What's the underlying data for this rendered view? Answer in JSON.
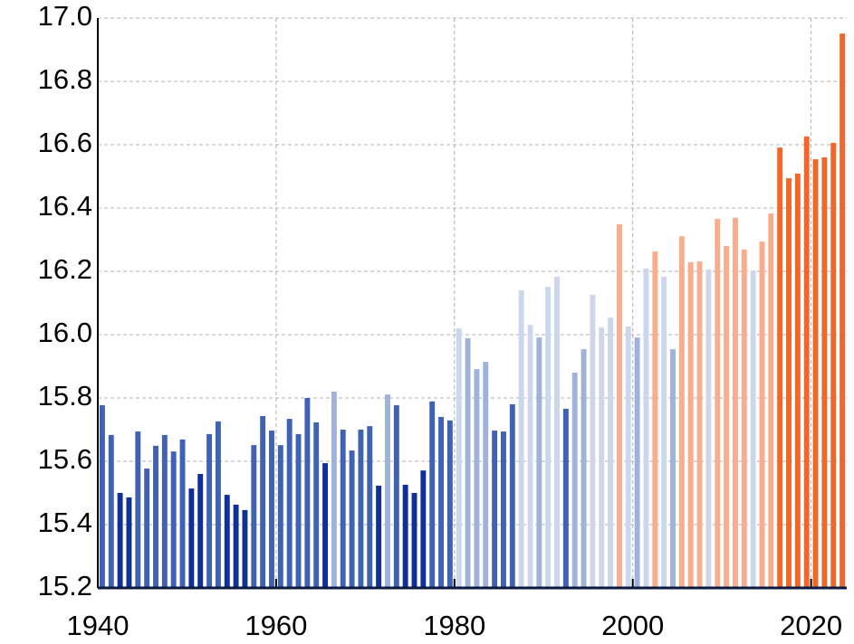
{
  "chart_data": {
    "type": "bar",
    "x": [
      1940,
      1941,
      1942,
      1943,
      1944,
      1945,
      1946,
      1947,
      1948,
      1949,
      1950,
      1951,
      1952,
      1953,
      1954,
      1955,
      1956,
      1957,
      1958,
      1959,
      1960,
      1961,
      1962,
      1963,
      1964,
      1965,
      1966,
      1967,
      1968,
      1969,
      1970,
      1971,
      1972,
      1973,
      1974,
      1975,
      1976,
      1977,
      1978,
      1979,
      1980,
      1981,
      1982,
      1983,
      1984,
      1985,
      1986,
      1987,
      1988,
      1989,
      1990,
      1991,
      1992,
      1993,
      1994,
      1995,
      1996,
      1997,
      1998,
      1999,
      2000,
      2001,
      2002,
      2003,
      2004,
      2005,
      2006,
      2007,
      2008,
      2009,
      2010,
      2011,
      2012,
      2013,
      2014,
      2015,
      2016,
      2017,
      2018,
      2019,
      2020,
      2021,
      2022,
      2023
    ],
    "values": [
      15.777,
      15.683,
      15.5,
      15.486,
      15.694,
      15.577,
      15.649,
      15.683,
      15.631,
      15.669,
      15.514,
      15.56,
      15.686,
      15.726,
      15.494,
      15.463,
      15.446,
      15.651,
      15.743,
      15.697,
      15.651,
      15.734,
      15.686,
      15.8,
      15.723,
      15.594,
      15.82,
      15.7,
      15.634,
      15.7,
      15.711,
      15.523,
      15.811,
      15.777,
      15.526,
      15.5,
      15.571,
      15.789,
      15.74,
      15.729,
      16.02,
      15.989,
      15.891,
      15.914,
      15.697,
      15.694,
      15.78,
      16.14,
      16.031,
      15.991,
      16.151,
      16.183,
      15.766,
      15.88,
      15.954,
      16.126,
      16.023,
      16.054,
      16.349,
      16.026,
      15.991,
      16.209,
      16.263,
      16.183,
      15.954,
      16.311,
      16.229,
      16.231,
      16.206,
      16.366,
      16.28,
      16.369,
      16.269,
      16.203,
      16.294,
      16.383,
      16.591,
      16.494,
      16.509,
      16.626,
      16.554,
      16.56,
      16.606,
      16.951
    ],
    "colors": [
      "#3f62b5",
      "#3f62b5",
      "#0f2f99",
      "#0f2f99",
      "#3f62b5",
      "#3f62b5",
      "#3f62b5",
      "#3f62b5",
      "#3f62b5",
      "#3f62b5",
      "#0f2f99",
      "#0f2f99",
      "#3f62b5",
      "#3f62b5",
      "#0f2f99",
      "#0f2f99",
      "#0f2f99",
      "#3f62b5",
      "#3f62b5",
      "#3f62b5",
      "#3f62b5",
      "#3f62b5",
      "#3f62b5",
      "#3f62b5",
      "#3f62b5",
      "#0f2f99",
      "#9fb2da",
      "#3f62b5",
      "#3f62b5",
      "#3f62b5",
      "#3f62b5",
      "#0f2f99",
      "#9fb2da",
      "#3f62b5",
      "#0f2f99",
      "#0f2f99",
      "#0f2f99",
      "#3f62b5",
      "#3f62b5",
      "#3f62b5",
      "#cdd7ec",
      "#9fb2da",
      "#9fb2da",
      "#9fb2da",
      "#3f62b5",
      "#3f62b5",
      "#3f62b5",
      "#cdd7ec",
      "#cdd7ec",
      "#9fb2da",
      "#cdd7ec",
      "#cdd7ec",
      "#3f62b5",
      "#9fb2da",
      "#9fb2da",
      "#cdd7ec",
      "#cdd7ec",
      "#cdd7ec",
      "#f8ad8c",
      "#cdd7ec",
      "#9fb2da",
      "#cdd7ec",
      "#f8ad8c",
      "#cdd7ec",
      "#9fb2da",
      "#f8ad8c",
      "#f8ad8c",
      "#f8ad8c",
      "#cdd7ec",
      "#f8ad8c",
      "#f8ad8c",
      "#f8ad8c",
      "#f8ad8c",
      "#cdd7ec",
      "#f8ad8c",
      "#f8ad8c",
      "#f2662a",
      "#f2662a",
      "#f2662a",
      "#f2662a",
      "#f2662a",
      "#f2662a",
      "#f2662a",
      "#f2662a"
    ],
    "xlim": [
      1940,
      2024
    ],
    "xticks": [
      1940,
      1960,
      1980,
      2000,
      2020
    ],
    "ylim": [
      15.2,
      17.0
    ],
    "yticks": [
      {
        "value": 15.2,
        "label": "15.2"
      },
      15.4,
      15.6,
      15.8,
      {
        "value": 16.0,
        "label": "16.0"
      },
      16.2,
      16.4,
      16.6,
      16.8,
      {
        "value": 17.0,
        "label": "17.0"
      }
    ],
    "grid": true
  }
}
